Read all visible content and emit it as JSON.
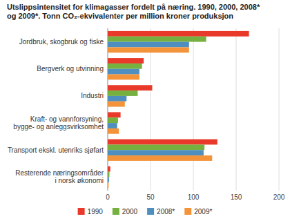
{
  "chart_data": {
    "type": "bar",
    "orientation": "horizontal",
    "title": "Utslippsintensitet for klimagasser fordelt på næring. 1990, 2000, 2008*\nog 2009*. Tonn CO₂-ekvivalenter per million kroner produksjon",
    "categories": [
      "Jordbruk, skogbruk og fiske",
      "Bergverk og utvinning",
      "Industri",
      "Kraft- og vannforsyning,\nbygge- og anleggsvirksomhet",
      "Transport ekskl. utenriks sjøfart",
      "Resterende næringsområder\ni norsk økonomi"
    ],
    "series": [
      {
        "name": "1990",
        "color": "#e8392a",
        "values": [
          165,
          42,
          52,
          15,
          128,
          3
        ]
      },
      {
        "name": "2000",
        "color": "#76b140",
        "values": [
          115,
          40,
          35,
          12,
          113,
          2
        ]
      },
      {
        "name": "2008*",
        "color": "#4f8fbf",
        "values": [
          95,
          37,
          22,
          11,
          112,
          1.5
        ]
      },
      {
        "name": "2009*",
        "color": "#f4943a",
        "values": [
          95,
          37,
          20,
          13,
          122,
          1
        ]
      }
    ],
    "xlim": [
      0,
      200
    ],
    "xticks": [
      0,
      50,
      100,
      150,
      200
    ],
    "grid": true,
    "legend": "bottom"
  }
}
